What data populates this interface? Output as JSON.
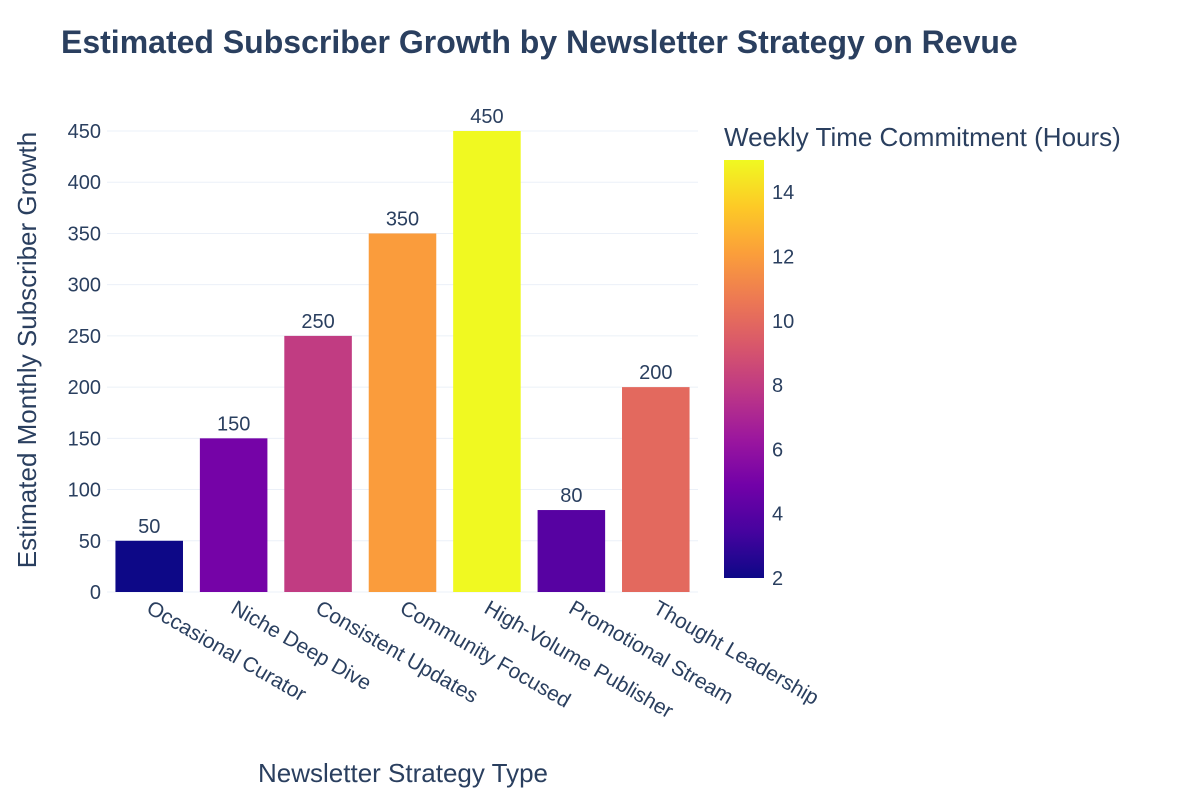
{
  "chart_data": {
    "type": "bar",
    "title": "Estimated Subscriber Growth by Newsletter Strategy on Revue",
    "xlabel": "Newsletter Strategy Type",
    "ylabel": "Estimated Monthly Subscriber Growth",
    "categories": [
      "Occasional Curator",
      "Niche Deep Dive",
      "Consistent Updates",
      "Community Focused",
      "High-Volume Publisher",
      "Promotional Stream",
      "Thought Leadership"
    ],
    "values": [
      50,
      150,
      250,
      350,
      450,
      80,
      200
    ],
    "color_values": [
      2,
      5,
      8,
      12,
      15,
      4,
      10
    ],
    "ylim": [
      0,
      450
    ],
    "yticks": [
      0,
      50,
      100,
      150,
      200,
      250,
      300,
      350,
      400,
      450
    ],
    "grid": true,
    "colorbar": {
      "title": "Weekly Time Commitment (Hours)",
      "range": [
        2,
        15
      ],
      "ticks": [
        2,
        4,
        6,
        8,
        10,
        12,
        14
      ],
      "colorscale": [
        "#0d0887",
        "#46039f",
        "#7201a8",
        "#9c179e",
        "#bd3786",
        "#d8576b",
        "#ed7953",
        "#fb9f3a",
        "#fdca26",
        "#f0f921"
      ]
    },
    "legend": "colorbar-right"
  }
}
